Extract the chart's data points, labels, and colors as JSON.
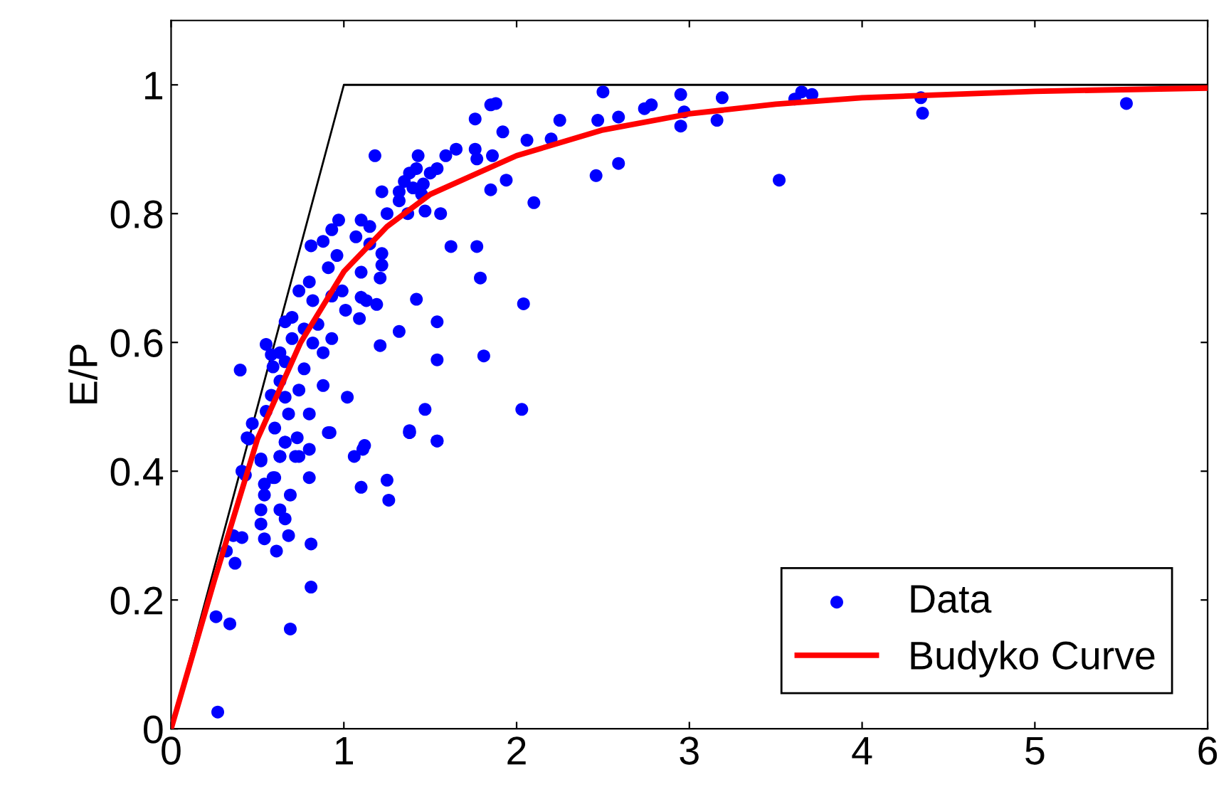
{
  "chart_data": {
    "type": "scatter",
    "ylabel": "E/P",
    "xlim": [
      0,
      6
    ],
    "ylim": [
      0,
      1.1
    ],
    "xticks": [
      0,
      1,
      2,
      3,
      4,
      5,
      6
    ],
    "yticks": [
      0,
      0.2,
      0.4,
      0.6,
      0.8,
      1
    ],
    "grid": false,
    "legend": "bottom right",
    "series": [
      {
        "type": "line",
        "color": "#000000",
        "x": [
          0,
          1,
          6
        ],
        "values": [
          0,
          1,
          1
        ],
        "marker": "none",
        "line_style": "solid"
      },
      {
        "name": "Data",
        "color": "#0000ff",
        "marker": "circle",
        "x": [
          0.27,
          0.26,
          0.34,
          0.69,
          0.81,
          0.37,
          0.32,
          0.36,
          0.41,
          0.54,
          0.61,
          0.68,
          0.52,
          0.52,
          0.63,
          0.66,
          0.81,
          0.69,
          0.54,
          0.6,
          0.54,
          0.8,
          0.43,
          0.52,
          0.63,
          0.72,
          0.8,
          1.06,
          1.11,
          1.25,
          1.26,
          1.1,
          1.54,
          1.38,
          0.92,
          0.45,
          0.66,
          2.5,
          1.88,
          1.85,
          1.76,
          1.92,
          2.25,
          2.47,
          2.59,
          2.74,
          2.78,
          2.95,
          2.97,
          2.95,
          3.16,
          3.19,
          3.52,
          2.46,
          2.59,
          2.06,
          2.2,
          2.1,
          1.94,
          1.85,
          1.65,
          1.59,
          1.43,
          1.76,
          1.77,
          1.86,
          1.56,
          1.47,
          1.62,
          1.77,
          1.79,
          1.42,
          2.04,
          1.54,
          1.32,
          1.54,
          1.81,
          1.47,
          2.03,
          1.38,
          1.54,
          1.32,
          1.37,
          1.4,
          1.35,
          1.45,
          1.42,
          3.61,
          3.65,
          3.71,
          4.34,
          4.35,
          5.53,
          1.18,
          0.4,
          1.21,
          1.02,
          0.91,
          1.38,
          1.12,
          0.97,
          1.1,
          0.93,
          0.81,
          0.88,
          1.22,
          1.38,
          1.32,
          1.46,
          1.5,
          1.54,
          1.25,
          1.15,
          1.07,
          0.96,
          1.15,
          1.22,
          1.21,
          1.22,
          1.1,
          0.91,
          0.8,
          0.74,
          0.82,
          0.93,
          0.99,
          1.1,
          1.13,
          1.19,
          1.09,
          1.01,
          0.7,
          0.77,
          0.85,
          0.93,
          0.88,
          0.82,
          0.7,
          0.63,
          0.55,
          0.59,
          0.66,
          0.77,
          0.88,
          0.74,
          0.63,
          0.58,
          0.66,
          0.68,
          0.8,
          0.55,
          0.47,
          0.44,
          0.6,
          0.73,
          0.66,
          0.52,
          0.63,
          0.74,
          0.41,
          0.59,
          0.66,
          0.58
        ],
        "values": [
          0.026,
          0.174,
          0.163,
          0.155,
          0.22,
          0.257,
          0.276,
          0.3,
          0.297,
          0.295,
          0.276,
          0.3,
          0.318,
          0.34,
          0.34,
          0.326,
          0.287,
          0.363,
          0.38,
          0.39,
          0.363,
          0.39,
          0.394,
          0.416,
          0.423,
          0.423,
          0.434,
          0.423,
          0.434,
          0.386,
          0.355,
          0.375,
          0.447,
          0.46,
          0.46,
          0.45,
          0.445,
          0.989,
          0.971,
          0.969,
          0.947,
          0.927,
          0.945,
          0.945,
          0.95,
          0.963,
          0.969,
          0.985,
          0.958,
          0.936,
          0.945,
          0.98,
          0.852,
          0.859,
          0.878,
          0.914,
          0.916,
          0.817,
          0.852,
          0.837,
          0.9,
          0.89,
          0.89,
          0.9,
          0.885,
          0.89,
          0.8,
          0.804,
          0.749,
          0.749,
          0.7,
          0.667,
          0.66,
          0.632,
          0.617,
          0.573,
          0.579,
          0.496,
          0.496,
          0.463,
          0.447,
          0.82,
          0.8,
          0.84,
          0.85,
          0.83,
          0.87,
          0.978,
          0.989,
          0.985,
          0.98,
          0.956,
          0.971,
          0.89,
          0.557,
          0.595,
          0.515,
          0.46,
          0.46,
          0.44,
          0.79,
          0.79,
          0.775,
          0.75,
          0.757,
          0.834,
          0.863,
          0.834,
          0.846,
          0.863,
          0.87,
          0.8,
          0.78,
          0.764,
          0.735,
          0.753,
          0.738,
          0.7,
          0.72,
          0.709,
          0.716,
          0.694,
          0.68,
          0.665,
          0.672,
          0.68,
          0.67,
          0.665,
          0.659,
          0.637,
          0.65,
          0.639,
          0.621,
          0.628,
          0.606,
          0.584,
          0.599,
          0.606,
          0.584,
          0.597,
          0.562,
          0.57,
          0.559,
          0.533,
          0.526,
          0.54,
          0.518,
          0.515,
          0.489,
          0.489,
          0.493,
          0.474,
          0.452,
          0.467,
          0.452,
          0.445,
          0.419,
          0.423,
          0.423,
          0.4,
          0.39,
          0.632,
          0.581
        ]
      },
      {
        "type": "line",
        "name": "Budyko Curve",
        "color": "#ff0000",
        "marker": "none",
        "line_style": "solid",
        "x": [
          0,
          0.25,
          0.5,
          0.75,
          1,
          1.25,
          1.5,
          2,
          2.5,
          3,
          3.5,
          4,
          5,
          6
        ],
        "values": [
          0,
          0.23,
          0.45,
          0.6,
          0.71,
          0.78,
          0.83,
          0.89,
          0.93,
          0.955,
          0.97,
          0.98,
          0.99,
          0.995
        ]
      }
    ]
  }
}
